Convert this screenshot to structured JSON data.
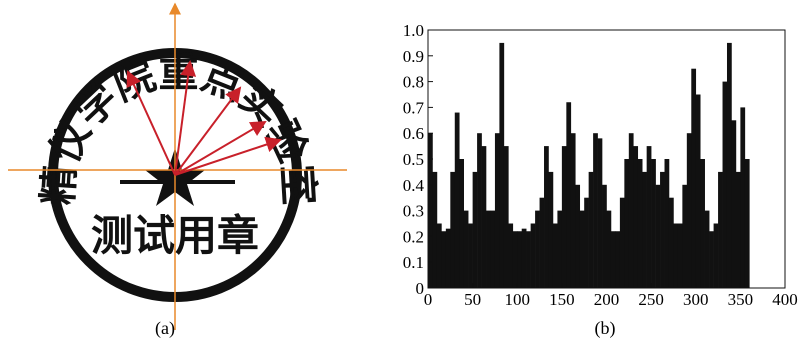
{
  "figure_a": {
    "ring_text": "精仪学院重点实验室",
    "center_text": "测试用章",
    "caption": "(a)"
  },
  "chart_data": {
    "type": "histogram",
    "caption": "(b)",
    "color": "#111111",
    "bins": [
      0,
      5,
      10,
      15,
      20,
      25,
      30,
      35,
      40,
      45,
      50,
      55,
      60,
      65,
      70,
      75,
      80,
      85,
      90,
      95,
      100,
      105,
      110,
      115,
      120,
      125,
      130,
      135,
      140,
      145,
      150,
      155,
      160,
      165,
      170,
      175,
      180,
      185,
      190,
      195,
      200,
      205,
      210,
      215,
      220,
      225,
      230,
      235,
      240,
      245,
      250,
      255,
      260,
      265,
      270,
      275,
      280,
      285,
      290,
      295,
      300,
      305,
      310,
      315,
      320,
      325,
      330,
      335,
      340,
      345,
      350,
      355,
      360
    ],
    "values": [
      0.6,
      0.45,
      0.25,
      0.22,
      0.23,
      0.45,
      0.68,
      0.5,
      0.3,
      0.25,
      0.45,
      0.6,
      0.55,
      0.3,
      0.3,
      0.6,
      0.95,
      0.55,
      0.25,
      0.22,
      0.22,
      0.23,
      0.22,
      0.25,
      0.3,
      0.35,
      0.55,
      0.45,
      0.25,
      0.3,
      0.55,
      0.72,
      0.6,
      0.4,
      0.3,
      0.35,
      0.45,
      0.6,
      0.58,
      0.4,
      0.3,
      0.22,
      0.22,
      0.35,
      0.5,
      0.6,
      0.55,
      0.5,
      0.45,
      0.55,
      0.5,
      0.4,
      0.45,
      0.5,
      0.35,
      0.25,
      0.25,
      0.4,
      0.6,
      0.85,
      0.75,
      0.5,
      0.3,
      0.22,
      0.25,
      0.45,
      0.8,
      0.95,
      0.65,
      0.45,
      0.7,
      0.5
    ],
    "xlim": [
      0,
      400
    ],
    "xticks": [
      0,
      50,
      100,
      150,
      200,
      250,
      300,
      350,
      400
    ],
    "ylim": [
      0,
      1
    ],
    "yticks": [
      0,
      0.1,
      0.2,
      0.3,
      0.4,
      0.5,
      0.6,
      0.7,
      0.8,
      0.9,
      {
        "value": 1,
        "label": "1.0"
      }
    ]
  }
}
